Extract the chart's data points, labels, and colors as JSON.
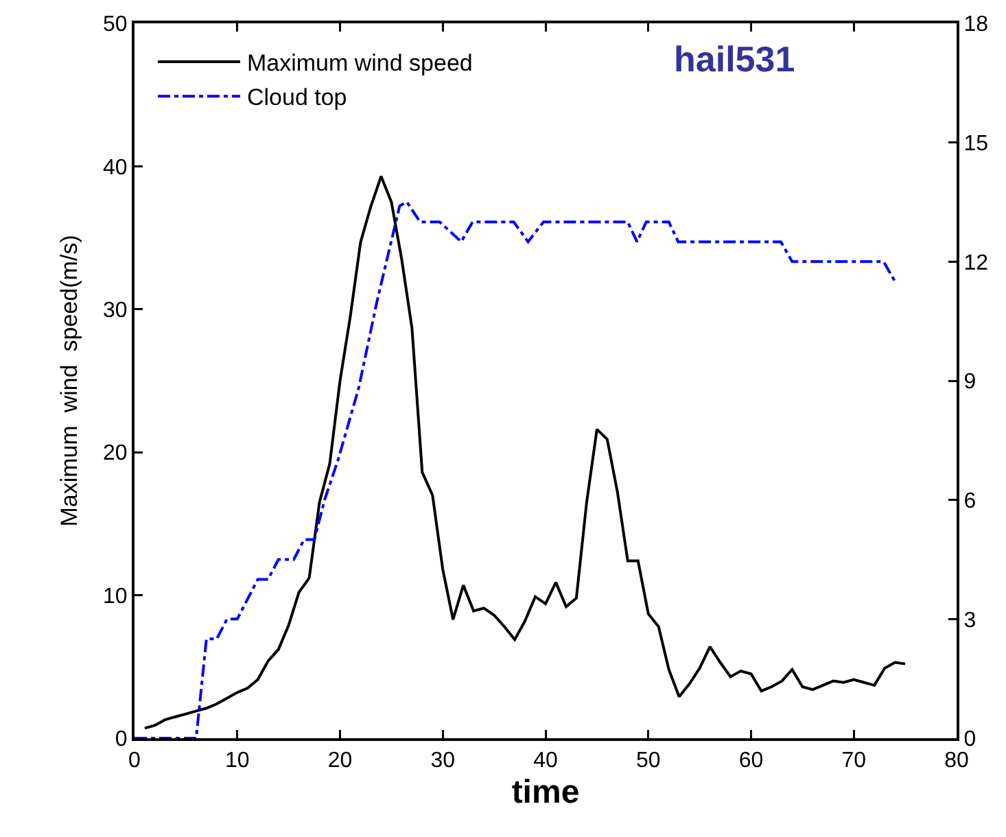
{
  "chart_data": {
    "type": "line",
    "xlabel": "time",
    "ylabel": "Maximum  wind  speed(m/s)",
    "annotations": [
      "hail531"
    ],
    "xlim": [
      0,
      80
    ],
    "xticks": [
      0,
      10,
      20,
      30,
      40,
      50,
      60,
      70,
      80
    ],
    "ylim": [
      0,
      50
    ],
    "yticks": [
      0,
      10,
      20,
      30,
      40,
      50
    ],
    "y2lim": [
      0,
      18
    ],
    "y2ticks": [
      0,
      3,
      6,
      9,
      12,
      15,
      18
    ],
    "grid": false,
    "legend": "top left",
    "marker": "none",
    "series": [
      {
        "name": "Maximum wind speed",
        "color": "#000000",
        "line_style": "solid",
        "x": [
          1,
          2,
          3,
          4,
          5,
          6,
          7,
          8,
          9,
          10,
          11,
          12,
          13,
          14,
          15,
          16,
          17,
          18,
          19,
          20,
          21,
          22,
          23,
          24,
          25,
          26,
          27,
          28,
          29,
          30,
          31,
          32,
          33,
          34,
          35,
          36,
          37,
          38,
          39,
          40,
          41,
          42,
          43,
          44,
          45,
          46,
          47,
          48,
          49,
          50,
          51,
          52,
          53,
          54,
          55,
          56,
          57,
          58,
          59,
          60,
          61,
          62,
          63,
          64,
          65,
          66,
          67,
          68,
          69,
          70,
          71,
          72,
          73,
          74,
          75
        ],
        "values": [
          0.7,
          0.9,
          1.3,
          1.5,
          1.7,
          1.9,
          2.1,
          2.4,
          2.8,
          3.2,
          3.5,
          4.1,
          5.4,
          6.2,
          7.9,
          10.2,
          11.2,
          16.5,
          19.2,
          25,
          29.5,
          34.7,
          37.2,
          39.3,
          37.5,
          33.5,
          28.7,
          18.6,
          17,
          11.8,
          8.3,
          10.7,
          8.9,
          9.1,
          8.6,
          7.8,
          6.9,
          8.2,
          9.9,
          9.4,
          10.9,
          9.2,
          9.8,
          16.5,
          21.6,
          20.9,
          17.2,
          12.4,
          12.4,
          8.7,
          7.8,
          4.8,
          2.9,
          3.8,
          4.9,
          6.4,
          5.3,
          4.3,
          4.7,
          4.5,
          3.3,
          3.6,
          4,
          4.8,
          3.6,
          3.4,
          3.7,
          4,
          3.9,
          4.1,
          3.9,
          3.7,
          4.9,
          5.3,
          5.2
        ]
      },
      {
        "name": "Cloud top",
        "color": "#0000ff",
        "line_style": "dashdot",
        "axis": "y2",
        "x": [
          0,
          6,
          7,
          8,
          9,
          10,
          12,
          13,
          14,
          15.5,
          16.5,
          17.5,
          18.5,
          19.8,
          21.8,
          23.6,
          25.8,
          26.5,
          27.8,
          29.7,
          31.8,
          32.9,
          36.9,
          38.3,
          39.8,
          48,
          48.9,
          49.8,
          52,
          52.9,
          62.9,
          64,
          72.9,
          74
        ],
        "values": [
          0,
          0,
          2.5,
          2.5,
          3,
          3,
          4,
          4,
          4.5,
          4.5,
          5,
          5,
          6,
          7,
          8.8,
          11,
          13.4,
          13.5,
          13,
          13,
          12.5,
          13,
          13,
          12.5,
          13,
          13,
          12.5,
          13,
          13,
          12.5,
          12.5,
          12,
          12,
          11.5
        ]
      }
    ]
  }
}
